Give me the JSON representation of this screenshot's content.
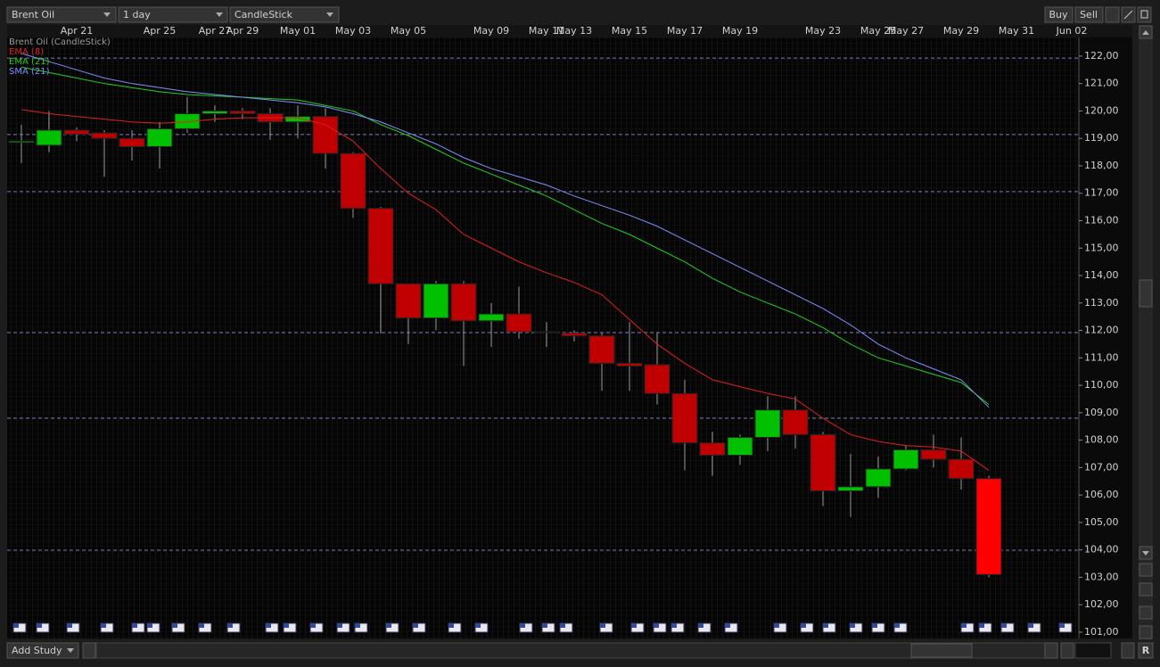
{
  "toolbar": {
    "instrument": "Brent Oil",
    "period": "1 day",
    "chart_style": "CandleStick",
    "buy": "Buy",
    "sell": "Sell"
  },
  "chart_data": {
    "type": "candlestick",
    "title": "Brent Oil (CandleStick)",
    "categories": [
      null,
      null,
      "Apr 21",
      null,
      null,
      "Apr 25",
      null,
      "Apr 27",
      "Apr 29",
      null,
      "May 01",
      null,
      "May 03",
      null,
      "May 05",
      null,
      null,
      "May 09",
      null,
      "May 11",
      "May 13",
      null,
      "May 15",
      null,
      "May 17",
      null,
      "May 19",
      null,
      null,
      "May 23",
      null,
      "May 25",
      "May 27",
      null,
      "May 29",
      null,
      "May 31",
      null,
      "Jun 02"
    ],
    "open": [
      118.85,
      118.75,
      119.3,
      119.2,
      119.0,
      118.7,
      119.35,
      119.9,
      120.0,
      119.9,
      119.6,
      119.8,
      118.45,
      116.45,
      113.7,
      112.45,
      113.7,
      112.35,
      112.6,
      111.95,
      111.9,
      111.8,
      110.8,
      110.75,
      109.7,
      107.9,
      107.45,
      108.1,
      109.1,
      108.2,
      106.15,
      106.3,
      106.95,
      107.65,
      107.3,
      106.6,
      null,
      null,
      null
    ],
    "high": [
      119.5,
      120.0,
      119.4,
      119.3,
      119.3,
      119.6,
      120.5,
      120.2,
      120.1,
      120.1,
      120.2,
      120.1,
      118.5,
      116.5,
      113.7,
      113.8,
      113.8,
      113.0,
      113.6,
      112.3,
      112.0,
      111.9,
      112.3,
      111.9,
      110.2,
      108.3,
      108.2,
      109.6,
      109.6,
      108.3,
      107.5,
      107.4,
      107.8,
      108.2,
      108.1,
      106.7,
      null,
      null,
      null
    ],
    "low": [
      118.1,
      118.5,
      118.9,
      117.6,
      118.2,
      117.9,
      119.2,
      119.6,
      119.7,
      118.95,
      119.0,
      117.9,
      116.1,
      111.9,
      111.5,
      112.0,
      110.7,
      111.4,
      111.7,
      111.4,
      111.6,
      109.8,
      109.8,
      109.3,
      106.9,
      106.7,
      107.1,
      107.6,
      107.7,
      105.6,
      105.2,
      105.9,
      106.9,
      107.0,
      106.2,
      103.0,
      null,
      null,
      null
    ],
    "close": [
      118.9,
      119.3,
      119.15,
      119.0,
      118.7,
      119.35,
      119.9,
      120.0,
      119.9,
      119.6,
      119.8,
      118.45,
      116.45,
      113.7,
      112.45,
      113.7,
      112.35,
      112.6,
      111.95,
      111.92,
      111.8,
      110.8,
      110.7,
      109.7,
      107.9,
      107.45,
      108.1,
      109.1,
      108.2,
      106.15,
      106.3,
      106.95,
      107.65,
      107.3,
      106.6,
      103.1,
      null,
      null,
      null
    ],
    "up_color": "#00c000",
    "down_color": "#c00000",
    "current_color": "#ff0000",
    "series": [
      {
        "name": "EMA (8)",
        "color": "#e02020",
        "values": [
          120.05,
          119.9,
          119.8,
          119.7,
          119.6,
          119.55,
          119.6,
          119.7,
          119.75,
          119.75,
          119.75,
          119.5,
          118.9,
          117.9,
          117.0,
          116.4,
          115.5,
          115.0,
          114.5,
          114.1,
          113.75,
          113.3,
          112.4,
          111.5,
          110.8,
          110.2,
          109.95,
          109.7,
          109.5,
          108.8,
          108.2,
          107.95,
          107.8,
          107.75,
          107.6,
          106.9,
          null,
          null,
          null
        ]
      },
      {
        "name": "EMA (21)",
        "color": "#20d020",
        "values": [
          121.6,
          121.4,
          121.2,
          121.0,
          120.85,
          120.7,
          120.6,
          120.55,
          120.5,
          120.45,
          120.4,
          120.2,
          120.0,
          119.5,
          119.1,
          118.6,
          118.1,
          117.7,
          117.3,
          116.9,
          116.4,
          115.9,
          115.5,
          115.0,
          114.5,
          113.9,
          113.4,
          113.0,
          112.6,
          112.1,
          111.5,
          111.0,
          110.7,
          110.4,
          110.1,
          109.3,
          null,
          null,
          null
        ]
      },
      {
        "name": "SMA (21)",
        "color": "#8090ff",
        "values": [
          122.1,
          121.8,
          121.5,
          121.2,
          121.0,
          120.85,
          120.7,
          120.6,
          120.5,
          120.4,
          120.3,
          120.15,
          119.9,
          119.6,
          119.2,
          118.8,
          118.3,
          117.9,
          117.6,
          117.3,
          116.9,
          116.55,
          116.2,
          115.8,
          115.3,
          114.8,
          114.3,
          113.8,
          113.3,
          112.8,
          112.2,
          111.5,
          111.0,
          110.6,
          110.2,
          109.2,
          null,
          null,
          null
        ]
      }
    ],
    "ylim": [
      100.77,
      122.68
    ],
    "yticks": [
      {
        "value": 122,
        "label": "122,00"
      },
      {
        "value": 121,
        "label": "121,00"
      },
      {
        "value": 120,
        "label": "120,00"
      },
      {
        "value": 119,
        "label": "119,00"
      },
      {
        "value": 118,
        "label": "118,00"
      },
      {
        "value": 117,
        "label": "117,00"
      },
      {
        "value": 116,
        "label": "116,00"
      },
      {
        "value": 115,
        "label": "115,00"
      },
      {
        "value": 114,
        "label": "114,00"
      },
      {
        "value": 113,
        "label": "113,00"
      },
      {
        "value": 112,
        "label": "112,00"
      },
      {
        "value": 111,
        "label": "111,00"
      },
      {
        "value": 110,
        "label": "110,00"
      },
      {
        "value": 109,
        "label": "109,00"
      },
      {
        "value": 108,
        "label": "108,00"
      },
      {
        "value": 107,
        "label": "107,00"
      },
      {
        "value": 106,
        "label": "106,00"
      },
      {
        "value": 105,
        "label": "105,00"
      },
      {
        "value": 104,
        "label": "104,00"
      },
      {
        "value": 103,
        "label": "103,00"
      },
      {
        "value": 102,
        "label": "102,00"
      },
      {
        "value": 101,
        "label": "101,00"
      }
    ],
    "levels": [
      121.93,
      119.14,
      117.06,
      111.92,
      108.8,
      103.99
    ]
  },
  "footer": {
    "add_study": "Add Study",
    "reset": "R"
  }
}
